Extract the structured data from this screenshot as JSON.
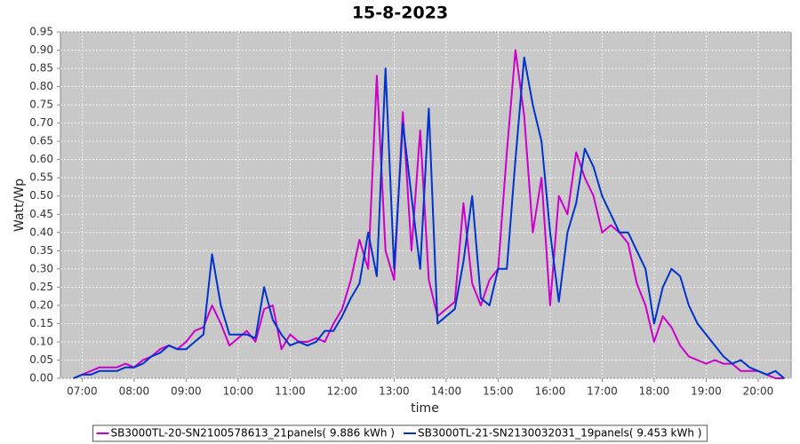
{
  "chart_data": {
    "type": "line",
    "title": "15-8-2023",
    "x_label": "time",
    "y_label": "Watt/Wp",
    "x": [
      "06:50",
      "07:00",
      "07:10",
      "07:20",
      "07:30",
      "07:40",
      "07:50",
      "08:00",
      "08:10",
      "08:20",
      "08:30",
      "08:40",
      "08:50",
      "09:00",
      "09:10",
      "09:20",
      "09:30",
      "09:40",
      "09:50",
      "10:00",
      "10:10",
      "10:20",
      "10:30",
      "10:40",
      "10:50",
      "11:00",
      "11:10",
      "11:20",
      "11:30",
      "11:40",
      "11:50",
      "12:00",
      "12:10",
      "12:20",
      "12:30",
      "12:40",
      "12:50",
      "13:00",
      "13:10",
      "13:20",
      "13:30",
      "13:40",
      "13:50",
      "14:00",
      "14:10",
      "14:20",
      "14:30",
      "14:40",
      "14:50",
      "15:00",
      "15:10",
      "15:20",
      "15:30",
      "15:40",
      "15:50",
      "16:00",
      "16:10",
      "16:20",
      "16:30",
      "16:40",
      "16:50",
      "17:00",
      "17:10",
      "17:20",
      "17:30",
      "17:40",
      "17:50",
      "18:00",
      "18:10",
      "18:20",
      "18:30",
      "18:40",
      "18:50",
      "19:00",
      "19:10",
      "19:20",
      "19:30",
      "19:40",
      "19:50",
      "20:00",
      "20:10",
      "20:20",
      "20:30"
    ],
    "series": [
      {
        "name": "SB3000TL-20-SN2100578613_21panels( 9.886 kWh )",
        "color": "#cc00cc",
        "values": [
          0.0,
          0.01,
          0.02,
          0.03,
          0.03,
          0.03,
          0.04,
          0.03,
          0.05,
          0.06,
          0.08,
          0.09,
          0.08,
          0.1,
          0.13,
          0.14,
          0.2,
          0.15,
          0.09,
          0.11,
          0.13,
          0.1,
          0.19,
          0.2,
          0.08,
          0.12,
          0.1,
          0.1,
          0.11,
          0.1,
          0.15,
          0.19,
          0.27,
          0.38,
          0.3,
          0.83,
          0.35,
          0.27,
          0.73,
          0.35,
          0.68,
          0.27,
          0.17,
          0.19,
          0.21,
          0.48,
          0.26,
          0.2,
          0.27,
          0.3,
          0.62,
          0.9,
          0.72,
          0.4,
          0.55,
          0.2,
          0.5,
          0.45,
          0.62,
          0.55,
          0.5,
          0.4,
          0.42,
          0.4,
          0.37,
          0.26,
          0.2,
          0.1,
          0.17,
          0.14,
          0.09,
          0.06,
          0.05,
          0.04,
          0.05,
          0.04,
          0.04,
          0.02,
          0.02,
          0.02,
          0.01,
          0.0,
          0.0
        ]
      },
      {
        "name": "SB3000TL-21-SN2130032031_19panels( 9.453 kWh )",
        "color": "#0033cc",
        "values": [
          0.0,
          0.01,
          0.01,
          0.02,
          0.02,
          0.02,
          0.03,
          0.03,
          0.04,
          0.06,
          0.07,
          0.09,
          0.08,
          0.08,
          0.1,
          0.12,
          0.34,
          0.2,
          0.12,
          0.12,
          0.12,
          0.11,
          0.25,
          0.16,
          0.12,
          0.09,
          0.1,
          0.09,
          0.1,
          0.13,
          0.13,
          0.17,
          0.22,
          0.26,
          0.4,
          0.28,
          0.85,
          0.3,
          0.7,
          0.5,
          0.3,
          0.74,
          0.15,
          0.17,
          0.19,
          0.32,
          0.5,
          0.22,
          0.2,
          0.3,
          0.3,
          0.6,
          0.88,
          0.75,
          0.65,
          0.4,
          0.21,
          0.4,
          0.48,
          0.63,
          0.58,
          0.5,
          0.45,
          0.4,
          0.4,
          0.35,
          0.3,
          0.15,
          0.25,
          0.3,
          0.28,
          0.2,
          0.15,
          0.12,
          0.09,
          0.06,
          0.04,
          0.05,
          0.03,
          0.02,
          0.01,
          0.02,
          0.0
        ]
      }
    ],
    "xlim": [
      "06:35",
      "20:38"
    ],
    "xticks": [
      "07:00",
      "08:00",
      "09:00",
      "10:00",
      "11:00",
      "12:00",
      "13:00",
      "14:00",
      "15:00",
      "16:00",
      "17:00",
      "18:00",
      "19:00",
      "20:00"
    ],
    "ylim": [
      0,
      0.95
    ],
    "yticks": [
      {
        "value": 0,
        "label": "0.00"
      },
      0.05,
      {
        "value": 0.1,
        "label": "0.10"
      },
      0.15,
      {
        "value": 0.2,
        "label": "0.20"
      },
      0.25,
      {
        "value": 0.3,
        "label": "0.30"
      },
      0.35,
      {
        "value": 0.4,
        "label": "0.40"
      },
      0.45,
      {
        "value": 0.5,
        "label": "0.50"
      },
      0.55,
      {
        "value": 0.6,
        "label": "0.60"
      },
      0.65,
      {
        "value": 0.7,
        "label": "0.70"
      },
      0.75,
      {
        "value": 0.8,
        "label": "0.80"
      },
      0.85,
      {
        "value": 0.9,
        "label": "0.90"
      },
      0.95
    ],
    "grid": true,
    "legend": "bottom"
  }
}
